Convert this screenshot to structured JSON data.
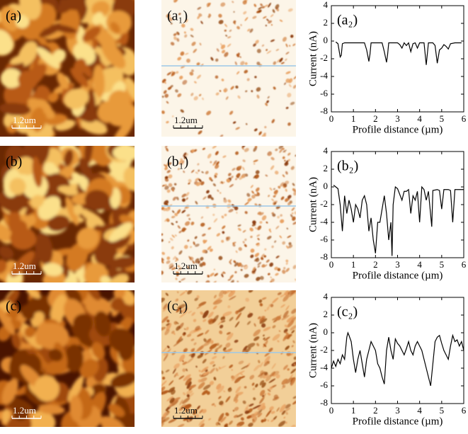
{
  "images": [
    {
      "label": "(a)",
      "scale": "1.2um"
    },
    {
      "label": "(a₁)",
      "scale": "1.2um"
    },
    {
      "label": "(b)",
      "scale": "1.2um"
    },
    {
      "label": "(b₁)",
      "scale": "1.2um"
    },
    {
      "label": "(c)",
      "scale": "1.2um"
    },
    {
      "label": "(c₁)",
      "scale": "1.2um"
    }
  ],
  "chart_data": [
    {
      "type": "line",
      "title": "(a₂)",
      "x_label": "Profile distance (µm)",
      "y_label": "Current (nA)",
      "color": "#000000",
      "x": [
        0.2,
        0.3,
        0.4,
        0.45,
        0.5,
        0.6,
        1.0,
        1.5,
        1.6,
        1.7,
        1.75,
        1.8,
        2.0,
        2.3,
        2.4,
        2.5,
        2.55,
        2.6,
        3.0,
        3.1,
        3.2,
        3.3,
        3.4,
        3.5,
        3.6,
        3.7,
        3.8,
        3.9,
        4.0,
        4.2,
        4.3,
        4.4,
        4.6,
        4.7,
        4.8,
        4.9,
        5.0,
        5.1,
        5.2,
        5.3,
        5.4,
        5.6,
        5.9
      ],
      "values": [
        -0.1,
        -0.3,
        -1.8,
        -1.6,
        -0.3,
        -0.2,
        -0.2,
        -0.2,
        -1.0,
        -2.3,
        -1.5,
        -0.2,
        -0.2,
        -0.2,
        -1.2,
        -2.4,
        -1.5,
        -0.2,
        -0.2,
        -0.4,
        -0.8,
        -0.2,
        -0.5,
        -0.2,
        -1.2,
        -0.3,
        -0.2,
        -0.8,
        -0.2,
        -0.2,
        -2.7,
        -0.2,
        -0.2,
        -0.5,
        -2.5,
        -1.0,
        -0.8,
        -0.4,
        -0.6,
        -0.9,
        -0.3,
        -0.2,
        -0.2
      ],
      "xlim": [
        0,
        6
      ],
      "ylim": [
        -8,
        4
      ],
      "xticks": [
        0,
        1,
        2,
        3,
        4,
        5,
        6
      ],
      "yticks": [
        4,
        2,
        0,
        -2,
        -4,
        -6,
        -8
      ]
    },
    {
      "type": "line",
      "title": "(b₂)",
      "x_label": "Profile distance (µm)",
      "y_label": "Current (nA)",
      "color": "#000000",
      "x": [
        0.1,
        0.3,
        0.4,
        0.5,
        0.6,
        0.7,
        0.8,
        0.9,
        1.0,
        1.1,
        1.2,
        1.3,
        1.4,
        1.5,
        1.6,
        1.7,
        1.8,
        1.9,
        2.0,
        2.1,
        2.2,
        2.3,
        2.4,
        2.5,
        2.6,
        2.7,
        2.75,
        2.8,
        2.9,
        3.0,
        3.2,
        3.3,
        3.4,
        3.5,
        3.6,
        3.7,
        3.8,
        3.9,
        4.0,
        4.1,
        4.2,
        4.3,
        4.4,
        4.55,
        4.6,
        4.8,
        4.9,
        5.0,
        5.1,
        5.3,
        5.4,
        5.5,
        5.6,
        5.8,
        6.0
      ],
      "values": [
        0.2,
        -0.2,
        -2.0,
        -5.0,
        -1.0,
        -3.0,
        -1.5,
        -2.5,
        -4.0,
        -2.0,
        -2.5,
        -3.5,
        -1.5,
        -1.0,
        -2.0,
        -5.0,
        -3.5,
        -6.0,
        -7.5,
        -4.0,
        -4.0,
        -2.5,
        -1.0,
        -3.0,
        -6.0,
        -4.0,
        -7.8,
        -2.0,
        0.0,
        -0.2,
        -1.5,
        -0.5,
        -0.5,
        -0.3,
        -3.0,
        -1.0,
        -1.5,
        -0.5,
        -4.0,
        0.0,
        -0.3,
        -1.5,
        -0.5,
        -4.5,
        -0.4,
        -0.3,
        -0.4,
        -2.5,
        -0.3,
        -0.3,
        -0.4,
        -4.0,
        -0.3,
        -0.3,
        -0.3
      ],
      "xlim": [
        0,
        6
      ],
      "ylim": [
        -8,
        4
      ],
      "xticks": [
        0,
        1,
        2,
        3,
        4,
        5,
        6
      ],
      "yticks": [
        4,
        2,
        0,
        -2,
        -4,
        -6,
        -8
      ]
    },
    {
      "type": "line",
      "title": "(c₂)",
      "x_label": "Profile distance (µm)",
      "y_label": "Current (nA)",
      "color": "#000000",
      "x": [
        0.0,
        0.1,
        0.2,
        0.3,
        0.4,
        0.5,
        0.6,
        0.7,
        0.75,
        0.8,
        0.9,
        1.0,
        1.1,
        1.2,
        1.3,
        1.4,
        1.5,
        1.6,
        1.7,
        1.8,
        1.9,
        2.0,
        2.1,
        2.2,
        2.3,
        2.4,
        2.5,
        2.6,
        2.7,
        2.8,
        2.9,
        3.0,
        3.1,
        3.2,
        3.3,
        3.4,
        3.5,
        3.6,
        3.7,
        3.8,
        3.9,
        4.0,
        4.1,
        4.2,
        4.3,
        4.4,
        4.5,
        4.6,
        4.7,
        4.8,
        4.9,
        5.0,
        5.1,
        5.2,
        5.3,
        5.4,
        5.5,
        5.6,
        5.7,
        5.8,
        5.9,
        6.0
      ],
      "values": [
        -4.0,
        -3.2,
        -3.8,
        -3.0,
        -3.5,
        -2.5,
        -3.0,
        -0.5,
        0.0,
        -0.3,
        -1.0,
        -3.0,
        -4.5,
        -3.0,
        -2.0,
        -3.5,
        -5.0,
        -3.0,
        -2.0,
        -1.0,
        -1.5,
        -2.0,
        -3.5,
        -4.0,
        -5.0,
        -5.8,
        -2.0,
        -0.5,
        -2.0,
        -3.0,
        -0.7,
        -1.2,
        -1.5,
        -2.0,
        -2.5,
        -1.8,
        -1.0,
        -2.0,
        -2.5,
        -1.5,
        -1.0,
        -1.5,
        -2.0,
        -3.0,
        -4.0,
        -5.0,
        -6.0,
        -3.5,
        -1.0,
        -0.5,
        -0.3,
        -1.2,
        -2.0,
        -2.5,
        -3.0,
        -1.5,
        -0.3,
        -1.0,
        -0.8,
        -1.5,
        -1.0,
        -2.0
      ],
      "xlim": [
        0,
        6
      ],
      "ylim": [
        -8,
        4
      ],
      "xticks": [
        0,
        1,
        2,
        3,
        4,
        5,
        6
      ],
      "yticks": [
        4,
        2,
        0,
        -2,
        -4,
        -6,
        -8
      ]
    }
  ]
}
